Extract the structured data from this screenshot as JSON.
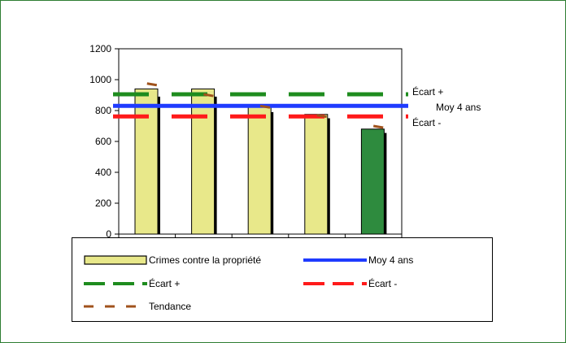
{
  "chart_data": {
    "type": "bar",
    "categories": [
      "",
      "",
      "",
      "",
      ""
    ],
    "series": [
      {
        "name": "Crimes contre la propriété",
        "values": [
          940,
          940,
          830,
          775,
          680
        ],
        "colors": [
          "#e8e88a",
          "#e8e88a",
          "#e8e88a",
          "#e8e88a",
          "#2e8b3e"
        ]
      },
      {
        "name": "",
        "values": [
          890,
          890,
          790,
          750,
          655
        ],
        "color": "#000000"
      }
    ],
    "reference_lines": [
      {
        "name": "Moy 4 ans",
        "value": 830,
        "style": "solid",
        "color": "#1f3bff"
      },
      {
        "name": "Écart +",
        "value": 905,
        "style": "dashed",
        "color": "#1e8c1e"
      },
      {
        "name": "Écart -",
        "value": 762,
        "style": "dashed",
        "color": "#ff1a1a"
      }
    ],
    "trend": {
      "name": "Tendance",
      "color": "#a0521c",
      "values": [
        975,
        905,
        830,
        770,
        700
      ]
    },
    "ylim": [
      0,
      1200
    ],
    "yticks": [
      0,
      200,
      400,
      600,
      800,
      1000,
      1200
    ],
    "grid": false,
    "legend_position": "bottom"
  },
  "legend": {
    "items": [
      {
        "label": "Crimes contre la propriété",
        "key": "bar"
      },
      {
        "label": "Moy 4 ans",
        "key": "avg"
      },
      {
        "label": "Écart +",
        "key": "plus"
      },
      {
        "label": "Écart -",
        "key": "minus"
      },
      {
        "label": "Tendance",
        "key": "trend"
      }
    ]
  }
}
